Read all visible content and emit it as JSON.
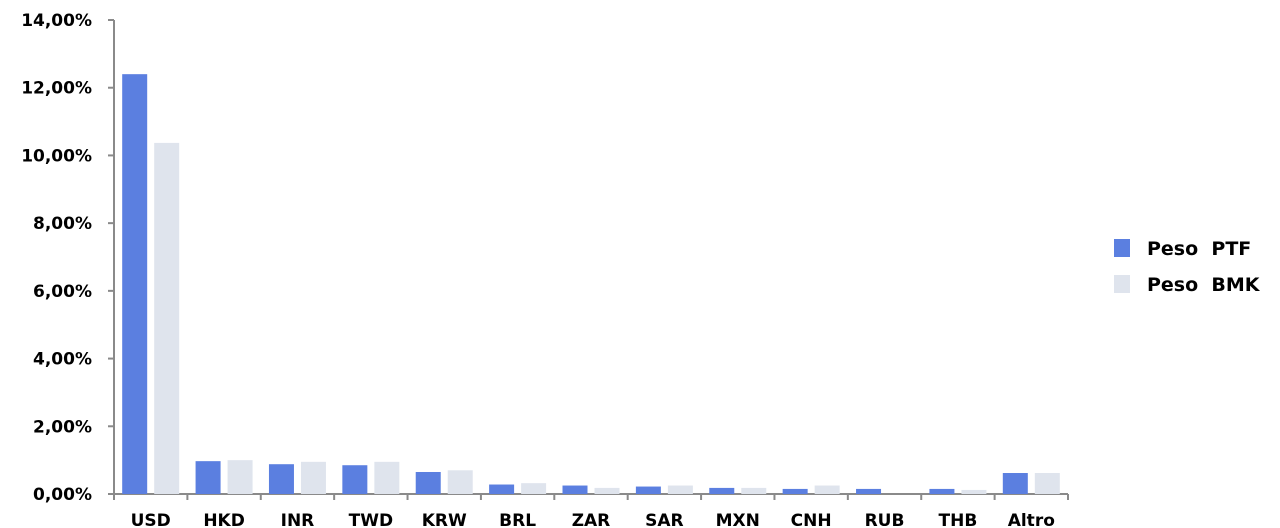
{
  "chart_data": {
    "type": "bar",
    "title": "",
    "xlabel": "",
    "ylabel": "",
    "categories": [
      "USD",
      "HKD",
      "INR",
      "TWD",
      "KRW",
      "BRL",
      "ZAR",
      "SAR",
      "MXN",
      "CNH",
      "RUB",
      "THB",
      "Altro"
    ],
    "series": [
      {
        "name": "Peso  PTF",
        "color": "#5b7fe0",
        "values": [
          12.4,
          0.97,
          0.88,
          0.85,
          0.65,
          0.28,
          0.25,
          0.22,
          0.18,
          0.15,
          0.15,
          0.15,
          0.62
        ]
      },
      {
        "name": "Peso  BMK",
        "color": "#dfe4ed",
        "values": [
          10.37,
          1.0,
          0.95,
          0.95,
          0.7,
          0.32,
          0.18,
          0.25,
          0.18,
          0.25,
          0.0,
          0.12,
          0.62
        ]
      }
    ],
    "ylim": [
      0,
      14
    ],
    "yticks": [
      "0,00%",
      "2,00%",
      "4,00%",
      "6,00%",
      "8,00%",
      "10,00%",
      "12,00%",
      "14,00%"
    ],
    "grid": false,
    "legend_position": "right"
  }
}
